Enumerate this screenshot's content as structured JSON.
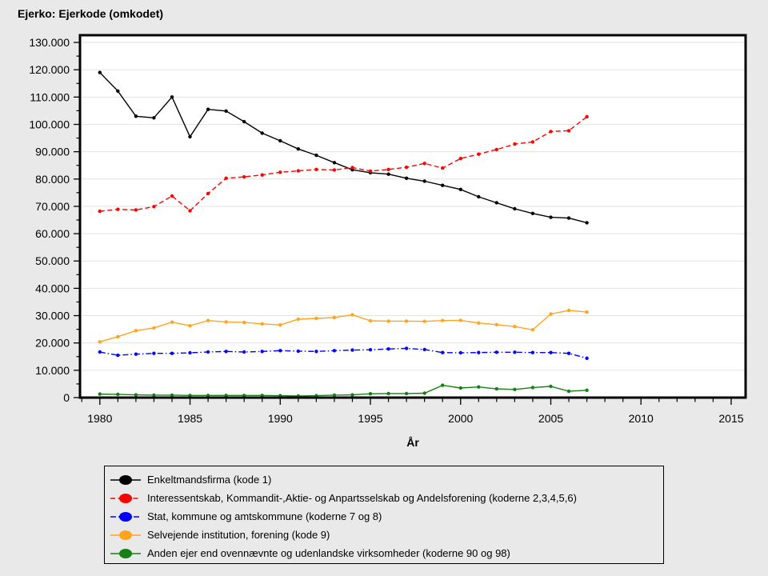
{
  "title": "Ejerko: Ejerkode (omkodet)",
  "chart_data": {
    "type": "line",
    "title": "Ejerko: Ejerkode (omkodet)",
    "xlabel": "År",
    "ylabel": "",
    "grid": "horizontal-only",
    "legend_position": "bottom",
    "xlim": [
      1978.9,
      2015.8
    ],
    "ylim": [
      0,
      132650
    ],
    "xtick_values": [
      1980,
      1985,
      1990,
      1995,
      2000,
      2005,
      2010,
      2015
    ],
    "xticklabels": [
      "1980",
      "1985",
      "1990",
      "1995",
      "2000",
      "2005",
      "2010",
      "2015"
    ],
    "xtick_minor_values": [
      1979,
      1981,
      1982,
      1983,
      1984,
      1986,
      1987,
      1988,
      1989,
      1991,
      1992,
      1993,
      1994,
      1996,
      1997,
      1998,
      1999,
      2001,
      2002,
      2003,
      2004,
      2006,
      2007,
      2008,
      2009,
      2011,
      2012,
      2013,
      2014
    ],
    "ytick_values": [
      0,
      10000,
      20000,
      30000,
      40000,
      50000,
      60000,
      70000,
      80000,
      90000,
      100000,
      110000,
      120000,
      130000
    ],
    "yticklabels": [
      "0",
      "10.000",
      "20.000",
      "30.000",
      "40.000",
      "50.000",
      "60.000",
      "70.000",
      "80.000",
      "90.000",
      "100.000",
      "110.000",
      "120.000",
      "130.000"
    ],
    "ytick_minor_values": [
      5000,
      15000,
      25000,
      35000,
      45000,
      55000,
      65000,
      75000,
      85000,
      95000,
      105000,
      115000,
      125000
    ],
    "gridline_values": [
      10000,
      20000,
      30000,
      40000,
      50000,
      60000,
      70000,
      80000,
      90000,
      100000,
      110000,
      120000,
      130000
    ],
    "x": [
      1980,
      1981,
      1982,
      1983,
      1984,
      1985,
      1986,
      1987,
      1988,
      1989,
      1990,
      1991,
      1992,
      1993,
      1994,
      1995,
      1996,
      1997,
      1998,
      1999,
      2000,
      2001,
      2002,
      2003,
      2004,
      2005,
      2006,
      2007
    ],
    "series": [
      {
        "name": "Enkeltmandsfirma (kode 1)",
        "color": "#000000",
        "dash": "",
        "values": [
          119000,
          112200,
          103000,
          102400,
          110000,
          95500,
          105500,
          104900,
          101000,
          96800,
          94000,
          91000,
          88700,
          86000,
          83400,
          82300,
          81800,
          80300,
          79200,
          77700,
          76200,
          73500,
          71300,
          69100,
          67400,
          66000,
          65700,
          64000
        ]
      },
      {
        "name": "Interessentskab, Kommandit-,Aktie- og Anpartsselskab og Andelsforening (koderne 2,3,4,5,6)",
        "color": "#FF0000",
        "dash": "6 3.5",
        "values": [
          68200,
          68900,
          68700,
          69900,
          73800,
          68400,
          74700,
          80300,
          80800,
          81500,
          82500,
          83000,
          83500,
          83300,
          84200,
          82900,
          83500,
          84300,
          85700,
          84000,
          87500,
          89100,
          90800,
          92800,
          93600,
          97400,
          97700,
          102800
        ]
      },
      {
        "name": "Stat, kommune og amtskommune (koderne 7 og 8)",
        "color": "#0000FF",
        "dash": "7 3 1.5 3",
        "values": [
          16700,
          15500,
          15900,
          16200,
          16200,
          16400,
          16700,
          16900,
          16700,
          16900,
          17200,
          17000,
          16900,
          17200,
          17400,
          17500,
          17800,
          18000,
          17600,
          16500,
          16400,
          16500,
          16600,
          16600,
          16500,
          16500,
          16200,
          14400
        ]
      },
      {
        "name": "Selvejende institution, forening (kode 9)",
        "color": "#FFA420",
        "dash": "",
        "values": [
          20400,
          22300,
          24500,
          25500,
          27600,
          26300,
          28200,
          27700,
          27500,
          27000,
          26600,
          28700,
          29000,
          29300,
          30300,
          28100,
          28000,
          28000,
          27900,
          28200,
          28300,
          27300,
          26700,
          26000,
          24800,
          30600,
          31900,
          31300
        ]
      },
      {
        "name": "Anden ejer end ovennævnte og udenlandske virksomheder (koderne 90 og 98)",
        "color": "#168016",
        "dash": "",
        "values": [
          1300,
          1200,
          1000,
          900,
          900,
          800,
          800,
          800,
          800,
          800,
          700,
          600,
          700,
          900,
          1000,
          1400,
          1500,
          1500,
          1600,
          4500,
          3500,
          3900,
          3200,
          3000,
          3700,
          4100,
          2300,
          2700
        ]
      }
    ],
    "colors": {
      "page_background": "#E9E9E9",
      "plot_background": "#FFFFFF",
      "gridline": "#E2E2E2",
      "frame": "#000000"
    }
  }
}
